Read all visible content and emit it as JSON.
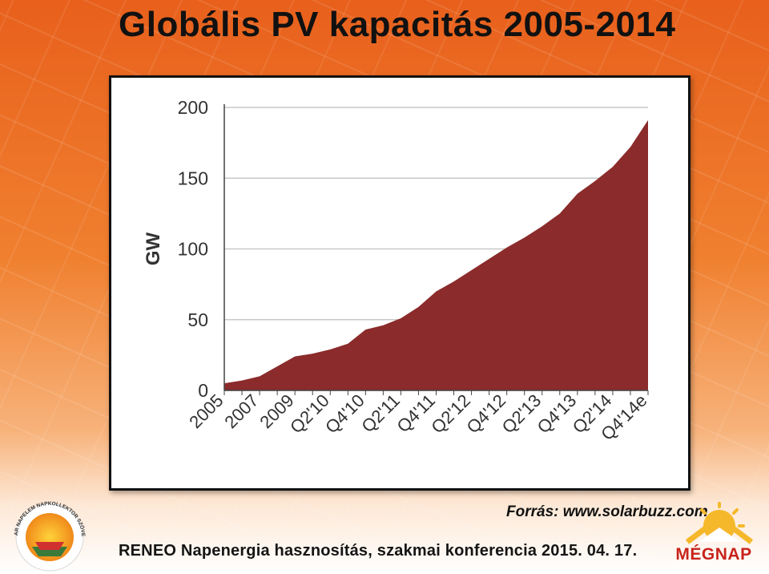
{
  "title": "Globális PV kapacitás 2005-2014",
  "source": "Forrás: www.solarbuzz.com",
  "footer": "RENEO Napenergia hasznosítás, szakmai konferencia 2015. 04. 17.",
  "logos": {
    "left": {
      "icon": "sun-collector-logo-icon",
      "text": "MAGYAR NAPELEM NAPKOLLEKTOR SZÖVETSÉG"
    },
    "right": {
      "icon": "sun-house-logo-icon",
      "text": "MÉGNAP"
    }
  },
  "colors": {
    "area_fill": "#8b2b2b",
    "grid": "#c8c8c8",
    "axis": "#444444"
  },
  "chart_data": {
    "type": "area",
    "title": "",
    "xlabel": "",
    "ylabel": "GW",
    "ylim": [
      0,
      200
    ],
    "yticks": [
      0,
      50,
      100,
      150,
      200
    ],
    "grid": true,
    "legend": "none",
    "tick_labels": [
      "2005",
      "2007",
      "2009",
      "Q2'10",
      "Q4'10",
      "Q2'11",
      "Q4'11",
      "Q2'12",
      "Q4'12",
      "Q2'13",
      "Q4'13",
      "Q2'14",
      "Q4'14e"
    ],
    "x": [
      "2005",
      "2006",
      "2007",
      "2008",
      "2009",
      "Q1'10",
      "Q2'10",
      "Q3'10",
      "Q4'10",
      "Q1'11",
      "Q2'11",
      "Q3'11",
      "Q4'11",
      "Q1'12",
      "Q2'12",
      "Q3'12",
      "Q4'12",
      "Q1'13",
      "Q2'13",
      "Q3'13",
      "Q4'13",
      "Q1'14",
      "Q2'14",
      "Q3'14",
      "Q4'14e"
    ],
    "series": [
      {
        "values": [
          5,
          7,
          10,
          17,
          24,
          26,
          29,
          33,
          43,
          46,
          51,
          59,
          70,
          77,
          85,
          93,
          101,
          108,
          116,
          125,
          139,
          148,
          158,
          172,
          191
        ]
      }
    ]
  }
}
